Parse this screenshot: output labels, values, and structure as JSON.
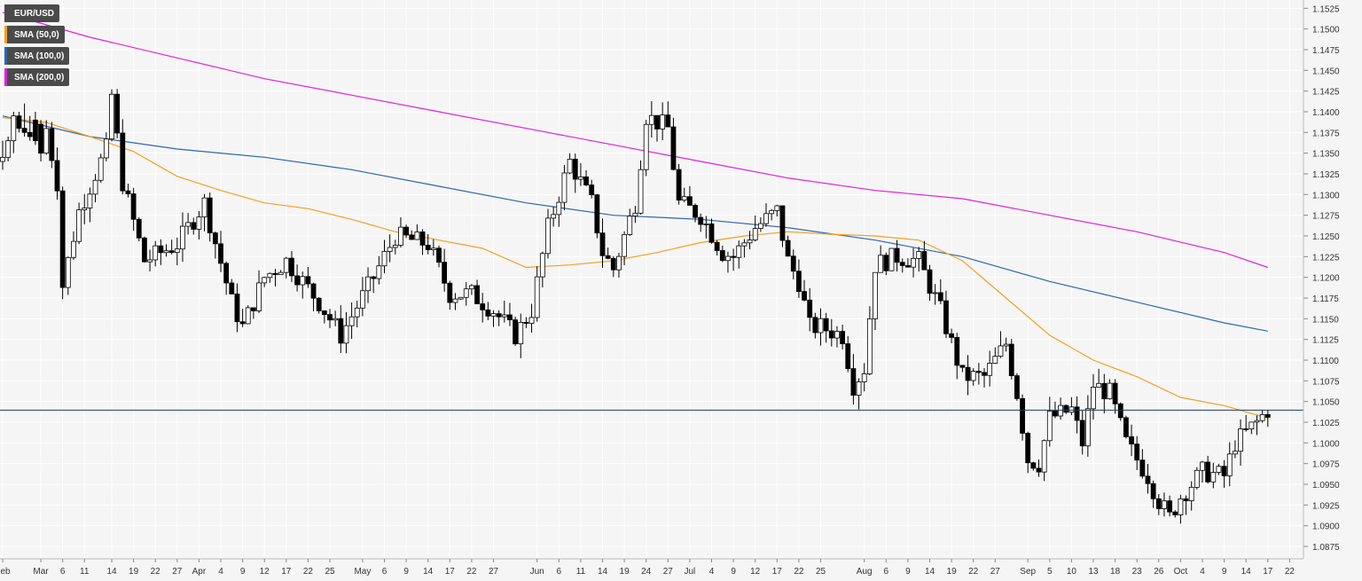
{
  "chart_data": {
    "type": "candlestick",
    "symbol": "EUR/USD",
    "last_price_label": "1.10396",
    "last_price": 1.10396,
    "colors": {
      "background": "#f5f5f5",
      "grid": "#ffffff",
      "candle_up": "#ffffff",
      "candle_down": "#000000",
      "sma50": "#f5a020",
      "sma100": "#2e66b0",
      "sma200": "#e020e0",
      "price_line": "#1f3a5f",
      "axis_text": "#333333"
    },
    "indicators": [
      {
        "name": "EUR/USD",
        "color": "#4a4a4a"
      },
      {
        "name": "SMA (50,0)",
        "color": "#f5a020"
      },
      {
        "name": "SMA (100,0)",
        "color": "#2e66b0"
      },
      {
        "name": "SMA (200,0)",
        "color": "#e020e0"
      }
    ],
    "y_axis": {
      "min": 1.0875,
      "max": 1.1525,
      "step": 0.0025,
      "ticks": [
        "1.1525",
        "1.1500",
        "1.1475",
        "1.1450",
        "1.1425",
        "1.1400",
        "1.1375",
        "1.1350",
        "1.1325",
        "1.1300",
        "1.1275",
        "1.1250",
        "1.1225",
        "1.1200",
        "1.1175",
        "1.1150",
        "1.1125",
        "1.1100",
        "1.1075",
        "1.1050",
        "1.1025",
        "1.1000",
        "1.0975",
        "1.0950",
        "1.0925",
        "1.0900",
        "1.0875"
      ]
    },
    "x_axis": {
      "ticks": [
        {
          "i": 0,
          "label": "Feb"
        },
        {
          "i": 7,
          "label": "Mar"
        },
        {
          "i": 11,
          "label": "6"
        },
        {
          "i": 15,
          "label": "11"
        },
        {
          "i": 20,
          "label": "14"
        },
        {
          "i": 24,
          "label": "19"
        },
        {
          "i": 28,
          "label": "22"
        },
        {
          "i": 32,
          "label": "27"
        },
        {
          "i": 36,
          "label": "Apr"
        },
        {
          "i": 40,
          "label": "4"
        },
        {
          "i": 44,
          "label": "9"
        },
        {
          "i": 48,
          "label": "12"
        },
        {
          "i": 52,
          "label": "17"
        },
        {
          "i": 56,
          "label": "22"
        },
        {
          "i": 60,
          "label": "25"
        },
        {
          "i": 66,
          "label": "May"
        },
        {
          "i": 70,
          "label": "6"
        },
        {
          "i": 74,
          "label": "9"
        },
        {
          "i": 78,
          "label": "14"
        },
        {
          "i": 82,
          "label": "17"
        },
        {
          "i": 86,
          "label": "22"
        },
        {
          "i": 90,
          "label": "27"
        },
        {
          "i": 98,
          "label": "Jun"
        },
        {
          "i": 102,
          "label": "6"
        },
        {
          "i": 106,
          "label": "11"
        },
        {
          "i": 110,
          "label": "14"
        },
        {
          "i": 114,
          "label": "19"
        },
        {
          "i": 118,
          "label": "24"
        },
        {
          "i": 122,
          "label": "27"
        },
        {
          "i": 126,
          "label": "Jul"
        },
        {
          "i": 130,
          "label": "4"
        },
        {
          "i": 134,
          "label": "9"
        },
        {
          "i": 138,
          "label": "12"
        },
        {
          "i": 142,
          "label": "17"
        },
        {
          "i": 146,
          "label": "22"
        },
        {
          "i": 150,
          "label": "25"
        },
        {
          "i": 158,
          "label": "Aug"
        },
        {
          "i": 162,
          "label": "6"
        },
        {
          "i": 166,
          "label": "9"
        },
        {
          "i": 170,
          "label": "14"
        },
        {
          "i": 174,
          "label": "19"
        },
        {
          "i": 178,
          "label": "22"
        },
        {
          "i": 182,
          "label": "27"
        },
        {
          "i": 188,
          "label": "Sep"
        },
        {
          "i": 192,
          "label": "5"
        },
        {
          "i": 196,
          "label": "10"
        },
        {
          "i": 200,
          "label": "13"
        },
        {
          "i": 204,
          "label": "18"
        },
        {
          "i": 208,
          "label": "23"
        },
        {
          "i": 212,
          "label": "26"
        },
        {
          "i": 216,
          "label": "Oct"
        },
        {
          "i": 220,
          "label": "4"
        },
        {
          "i": 224,
          "label": "9"
        },
        {
          "i": 228,
          "label": "14"
        },
        {
          "i": 232,
          "label": "17"
        },
        {
          "i": 236,
          "label": "22"
        }
      ]
    },
    "candles_ohlc": [
      [
        1.134,
        1.1365,
        1.133,
        1.1345
      ],
      [
        1.1345,
        1.137,
        1.134,
        1.1365
      ],
      [
        1.1365,
        1.14,
        1.135,
        1.1395
      ],
      [
        1.1395,
        1.14,
        1.1375,
        1.138
      ],
      [
        1.138,
        1.141,
        1.137,
        1.1375
      ],
      [
        1.1375,
        1.1395,
        1.1365,
        1.137
      ],
      [
        1.139,
        1.14,
        1.136,
        1.1365
      ],
      [
        1.1385,
        1.139,
        1.134,
        1.135
      ],
      [
        1.135,
        1.136,
        1.131,
        1.1315
      ],
      [
        1.1315,
        1.133,
        1.13,
        1.1315
      ],
      [
        1.131,
        1.132,
        1.118,
        1.1185
      ],
      [
        1.1185,
        1.124,
        1.118,
        1.1235
      ],
      [
        1.1235,
        1.126,
        1.1225,
        1.1245
      ],
      [
        1.1245,
        1.1285,
        1.124,
        1.128
      ],
      [
        1.128,
        1.132,
        1.1275,
        1.131
      ],
      [
        1.131,
        1.1345,
        1.129,
        1.1325
      ],
      [
        1.1325,
        1.1335,
        1.1295,
        1.13
      ],
      [
        1.13,
        1.133,
        1.1295,
        1.1325
      ],
      [
        1.1325,
        1.135,
        1.132,
        1.1345
      ],
      [
        1.1345,
        1.137,
        1.1335,
        1.1355
      ],
      [
        1.1355,
        1.145,
        1.135,
        1.1415
      ],
      [
        1.1415,
        1.144,
        1.136,
        1.1375
      ],
      [
        1.1375,
        1.138,
        1.13,
        1.131
      ],
      [
        1.131,
        1.133,
        1.127,
        1.1315
      ],
      [
        1.1315,
        1.132,
        1.126,
        1.1265
      ],
      [
        1.1265,
        1.128,
        1.123,
        1.124
      ],
      [
        1.124,
        1.126,
        1.121,
        1.1215
      ],
      [
        1.1215,
        1.1245,
        1.121,
        1.1225
      ],
      [
        1.1225,
        1.1235,
        1.12,
        1.1205
      ],
      [
        1.1205,
        1.123,
        1.1185,
        1.121
      ],
      [
        1.121,
        1.125,
        1.12,
        1.1225
      ],
      [
        1.1225,
        1.124,
        1.12,
        1.123
      ],
      [
        1.123,
        1.126,
        1.1225,
        1.1255
      ],
      [
        1.1255,
        1.1275,
        1.124,
        1.1255
      ],
      [
        1.1255,
        1.129,
        1.125,
        1.1285
      ],
      [
        1.1285,
        1.129,
        1.125,
        1.1255
      ],
      [
        1.1255,
        1.1305,
        1.125,
        1.13
      ],
      [
        1.13,
        1.1325,
        1.127,
        1.1275
      ],
      [
        1.1275,
        1.132,
        1.127,
        1.1315
      ],
      [
        1.1315,
        1.132,
        1.123,
        1.1235
      ],
      [
        1.1235,
        1.126,
        1.1225,
        1.1255
      ],
      [
        1.1255,
        1.1265,
        1.123,
        1.1235
      ],
      [
        1.1235,
        1.124,
        1.115,
        1.1155
      ],
      [
        1.1155,
        1.117,
        1.112,
        1.113
      ],
      [
        1.113,
        1.116,
        1.111,
        1.1145
      ],
      [
        1.1145,
        1.119,
        1.114,
        1.1185
      ],
      [
        1.1185,
        1.123,
        1.118,
        1.121
      ],
      [
        1.121,
        1.1255,
        1.1185,
        1.119
      ],
      [
        1.119,
        1.1215,
        1.1165,
        1.1175
      ],
      [
        1.1175,
        1.121,
        1.117,
        1.1205
      ],
      [
        1.1205,
        1.1215,
        1.117,
        1.118
      ],
      [
        1.118,
        1.1215,
        1.1175,
        1.1205
      ],
      [
        1.1205,
        1.124,
        1.119,
        1.123
      ],
      [
        1.123,
        1.126,
        1.122,
        1.124
      ],
      [
        1.124,
        1.125,
        1.12,
        1.1205
      ],
      [
        1.1205,
        1.1215,
        1.118,
        1.1185
      ],
      [
        1.1185,
        1.12,
        1.116,
        1.117
      ],
      [
        1.117,
        1.121,
        1.116,
        1.12
      ],
      [
        1.12,
        1.1205,
        1.1155,
        1.116
      ],
      [
        1.116,
        1.1175,
        1.115,
        1.1165
      ],
      [
        1.1165,
        1.1185,
        1.111,
        1.1185
      ],
      [
        1.1185,
        1.1225,
        1.118,
        1.121
      ],
      [
        1.121,
        1.123,
        1.119,
        1.1195
      ],
      [
        1.1195,
        1.121,
        1.116,
        1.1175
      ],
      [
        1.1175,
        1.118,
        1.113,
        1.114
      ],
      [
        1.114,
        1.1165,
        1.112,
        1.113
      ],
      [
        1.113,
        1.117,
        1.112,
        1.116
      ],
      [
        1.116,
        1.126,
        1.1155,
        1.119
      ],
      [
        1.119,
        1.124,
        1.117,
        1.1175
      ]
    ],
    "sma50": [
      [
        0,
        1.1393
      ],
      [
        8,
        1.1387
      ],
      [
        16,
        1.137
      ],
      [
        24,
        1.1352
      ],
      [
        32,
        1.1322
      ],
      [
        40,
        1.1305
      ],
      [
        48,
        1.129
      ],
      [
        56,
        1.1283
      ],
      [
        64,
        1.127
      ],
      [
        72,
        1.1255
      ],
      [
        80,
        1.1245
      ],
      [
        88,
        1.1235
      ],
      [
        96,
        1.1212
      ],
      [
        104,
        1.1215
      ],
      [
        112,
        1.122
      ],
      [
        120,
        1.123
      ],
      [
        128,
        1.1242
      ],
      [
        136,
        1.125
      ],
      [
        144,
        1.1255
      ],
      [
        152,
        1.1252
      ],
      [
        160,
        1.125
      ],
      [
        168,
        1.1245
      ],
      [
        176,
        1.122
      ],
      [
        184,
        1.1175
      ],
      [
        192,
        1.113
      ],
      [
        200,
        1.11
      ],
      [
        208,
        1.108
      ],
      [
        216,
        1.1055
      ],
      [
        224,
        1.1045
      ],
      [
        232,
        1.103
      ]
    ],
    "sma100": [
      [
        0,
        1.1395
      ],
      [
        16,
        1.137
      ],
      [
        32,
        1.1355
      ],
      [
        48,
        1.1345
      ],
      [
        64,
        1.133
      ],
      [
        80,
        1.131
      ],
      [
        96,
        1.129
      ],
      [
        112,
        1.1275
      ],
      [
        128,
        1.127
      ],
      [
        144,
        1.126
      ],
      [
        160,
        1.1245
      ],
      [
        176,
        1.1225
      ],
      [
        192,
        1.1195
      ],
      [
        208,
        1.117
      ],
      [
        224,
        1.1145
      ],
      [
        232,
        1.1135
      ]
    ],
    "sma200": [
      [
        0,
        1.152
      ],
      [
        16,
        1.149
      ],
      [
        32,
        1.1465
      ],
      [
        48,
        1.144
      ],
      [
        64,
        1.142
      ],
      [
        80,
        1.14
      ],
      [
        96,
        1.138
      ],
      [
        112,
        1.136
      ],
      [
        128,
        1.134
      ],
      [
        144,
        1.132
      ],
      [
        160,
        1.1305
      ],
      [
        176,
        1.1295
      ],
      [
        192,
        1.1275
      ],
      [
        208,
        1.1255
      ],
      [
        224,
        1.123
      ],
      [
        232,
        1.1212
      ]
    ]
  }
}
